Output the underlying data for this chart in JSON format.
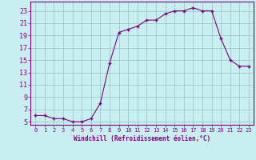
{
  "x": [
    0,
    1,
    2,
    3,
    4,
    5,
    6,
    7,
    8,
    9,
    10,
    11,
    12,
    13,
    14,
    15,
    16,
    17,
    18,
    19,
    20,
    21,
    22,
    23
  ],
  "y": [
    6,
    6,
    5.5,
    5.5,
    5,
    5,
    5.5,
    8,
    14.5,
    19.5,
    20,
    20.5,
    21.5,
    21.5,
    22.5,
    23,
    23,
    23.5,
    23,
    23,
    18.5,
    15,
    14,
    14
  ],
  "line_color": "#800080",
  "marker_color": "#800080",
  "bg_color": "#c8eef0",
  "grid_color": "#99cccc",
  "xlabel": "Windchill (Refroidissement éolien,°C)",
  "ylabel_ticks": [
    5,
    7,
    9,
    11,
    13,
    15,
    17,
    19,
    21,
    23
  ],
  "xlim": [
    -0.5,
    23.5
  ],
  "ylim": [
    4.5,
    24.5
  ],
  "xticks": [
    0,
    1,
    2,
    3,
    4,
    5,
    6,
    7,
    8,
    9,
    10,
    11,
    12,
    13,
    14,
    15,
    16,
    17,
    18,
    19,
    20,
    21,
    22,
    23
  ],
  "axis_color": "#800080",
  "tick_color": "#800080",
  "label_color": "#800080",
  "tick_fontsize": 5,
  "xlabel_fontsize": 5.5
}
